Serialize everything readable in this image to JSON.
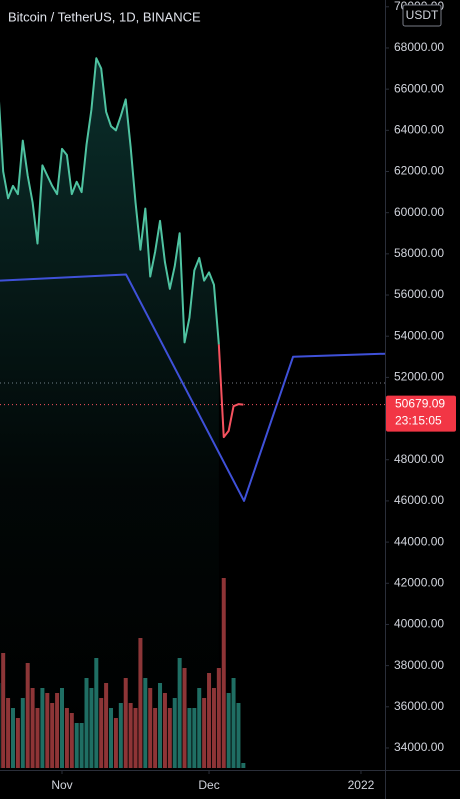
{
  "chart_data": {
    "type": "line",
    "title": "Bitcoin / TetherUS, 1D, BINANCE",
    "currency": "USDT",
    "countdown": "23:15:05",
    "x": [
      -13,
      -12,
      -11,
      -10,
      -9,
      -8,
      -7,
      -6,
      -5,
      -4,
      -3,
      -2,
      -1,
      0,
      1,
      2,
      3,
      4,
      5,
      6,
      7,
      8,
      9,
      10,
      11,
      12,
      13,
      14,
      15,
      16,
      17,
      18,
      19,
      20,
      21,
      22,
      23,
      24,
      25,
      26,
      27,
      28,
      29,
      30,
      31,
      32,
      33,
      34,
      35,
      36,
      37
    ],
    "series": [
      {
        "color": "#4fc3a1",
        "fill": true,
        "values": [
          66000,
          62000,
          60700,
          61300,
          60900,
          63500,
          61800,
          60500,
          58500,
          62300,
          61800,
          61300,
          60900,
          63100,
          62800,
          60900,
          61500,
          61000,
          63300,
          65000,
          67500,
          67000,
          64900,
          64200,
          64000,
          64700,
          65500,
          63200,
          60500,
          58200,
          60200,
          56900,
          58100,
          59600,
          57600,
          56300,
          57400,
          59000,
          53700,
          54900,
          57200,
          57800,
          56700,
          57100,
          56500,
          53600,
          null,
          null,
          null,
          null,
          null
        ]
      },
      {
        "color": "#f7525f",
        "values": [
          null,
          null,
          null,
          null,
          null,
          null,
          null,
          null,
          null,
          null,
          null,
          null,
          null,
          null,
          null,
          null,
          null,
          null,
          null,
          null,
          null,
          null,
          null,
          null,
          null,
          null,
          null,
          null,
          null,
          null,
          null,
          null,
          null,
          null,
          null,
          null,
          null,
          null,
          null,
          null,
          null,
          null,
          null,
          null,
          null,
          53600,
          49100,
          49400,
          50600,
          50700,
          50679.09
        ]
      },
      {
        "color": "#3f51d9",
        "x": [
          -12.65,
          13.06,
          37.14,
          47.14,
          65.9
        ],
        "values": [
          56700,
          57000,
          46000,
          53000,
          53150
        ]
      }
    ],
    "last_price_series": 1,
    "reference_lines": [
      {
        "value": 51730,
        "color": "#787b86"
      }
    ],
    "volume": [
      85,
      115,
      70,
      60,
      50,
      70,
      105,
      80,
      60,
      80,
      75,
      65,
      75,
      80,
      60,
      55,
      45,
      45,
      90,
      80,
      110,
      70,
      85,
      60,
      50,
      65,
      90,
      65,
      60,
      130,
      90,
      80,
      60,
      85,
      75,
      60,
      70,
      110,
      100,
      60,
      60,
      80,
      70,
      95,
      80,
      100,
      190,
      75,
      90,
      65,
      5
    ],
    "volume_colors": [
      "#1f6e63",
      "#8e3436",
      "#8e3436",
      "#1f6e63",
      "#8e3436",
      "#1f6e63",
      "#8e3436",
      "#8e3436",
      "#8e3436",
      "#1f6e63",
      "#8e3436",
      "#8e3436",
      "#8e3436",
      "#1f6e63",
      "#8e3436",
      "#8e3436",
      "#1f6e63",
      "#1f6e63",
      "#1f6e63",
      "#1f6e63",
      "#1f6e63",
      "#8e3436",
      "#8e3436",
      "#1f6e63",
      "#8e3436",
      "#1f6e63",
      "#8e3436",
      "#8e3436",
      "#8e3436",
      "#8e3436",
      "#1f6e63",
      "#8e3436",
      "#8e3436",
      "#1f6e63",
      "#8e3436",
      "#8e3436",
      "#1f6e63",
      "#1f6e63",
      "#8e3436",
      "#1f6e63",
      "#1f6e63",
      "#1f6e63",
      "#8e3436",
      "#8e3436",
      "#8e3436",
      "#8e3436",
      "#8e3436",
      "#1f6e63",
      "#1f6e63",
      "#1f6e63",
      "#1f6e63"
    ],
    "xlim": [
      -12.65,
      65.9
    ],
    "xticks": [
      {
        "value": 0,
        "label": "Nov"
      },
      {
        "value": 30,
        "label": "Dec"
      },
      {
        "value": 61,
        "label": "2022"
      }
    ],
    "ylim": [
      32930,
      70330
    ],
    "yticks": [
      {
        "value": 34000,
        "label": "34000.00"
      },
      {
        "value": 36000,
        "label": "36000.00"
      },
      {
        "value": 38000,
        "label": "38000.00"
      },
      {
        "value": 40000,
        "label": "40000.00"
      },
      {
        "value": 42000,
        "label": "42000.00"
      },
      {
        "value": 44000,
        "label": "44000.00"
      },
      {
        "value": 46000,
        "label": "46000.00"
      },
      {
        "value": 48000,
        "label": "48000.00"
      },
      {
        "value": 50000,
        "label": "50000.00"
      },
      {
        "value": 52000,
        "label": "52000.00"
      },
      {
        "value": 54000,
        "label": "54000.00"
      },
      {
        "value": 56000,
        "label": "56000.00"
      },
      {
        "value": 58000,
        "label": "58000.00"
      },
      {
        "value": 60000,
        "label": "60000.00"
      },
      {
        "value": 62000,
        "label": "62000.00"
      },
      {
        "value": 64000,
        "label": "64000.00"
      },
      {
        "value": 66000,
        "label": "66000.00"
      },
      {
        "value": 68000,
        "label": "68000.00"
      },
      {
        "value": 70000,
        "label": "70000.00"
      }
    ]
  }
}
